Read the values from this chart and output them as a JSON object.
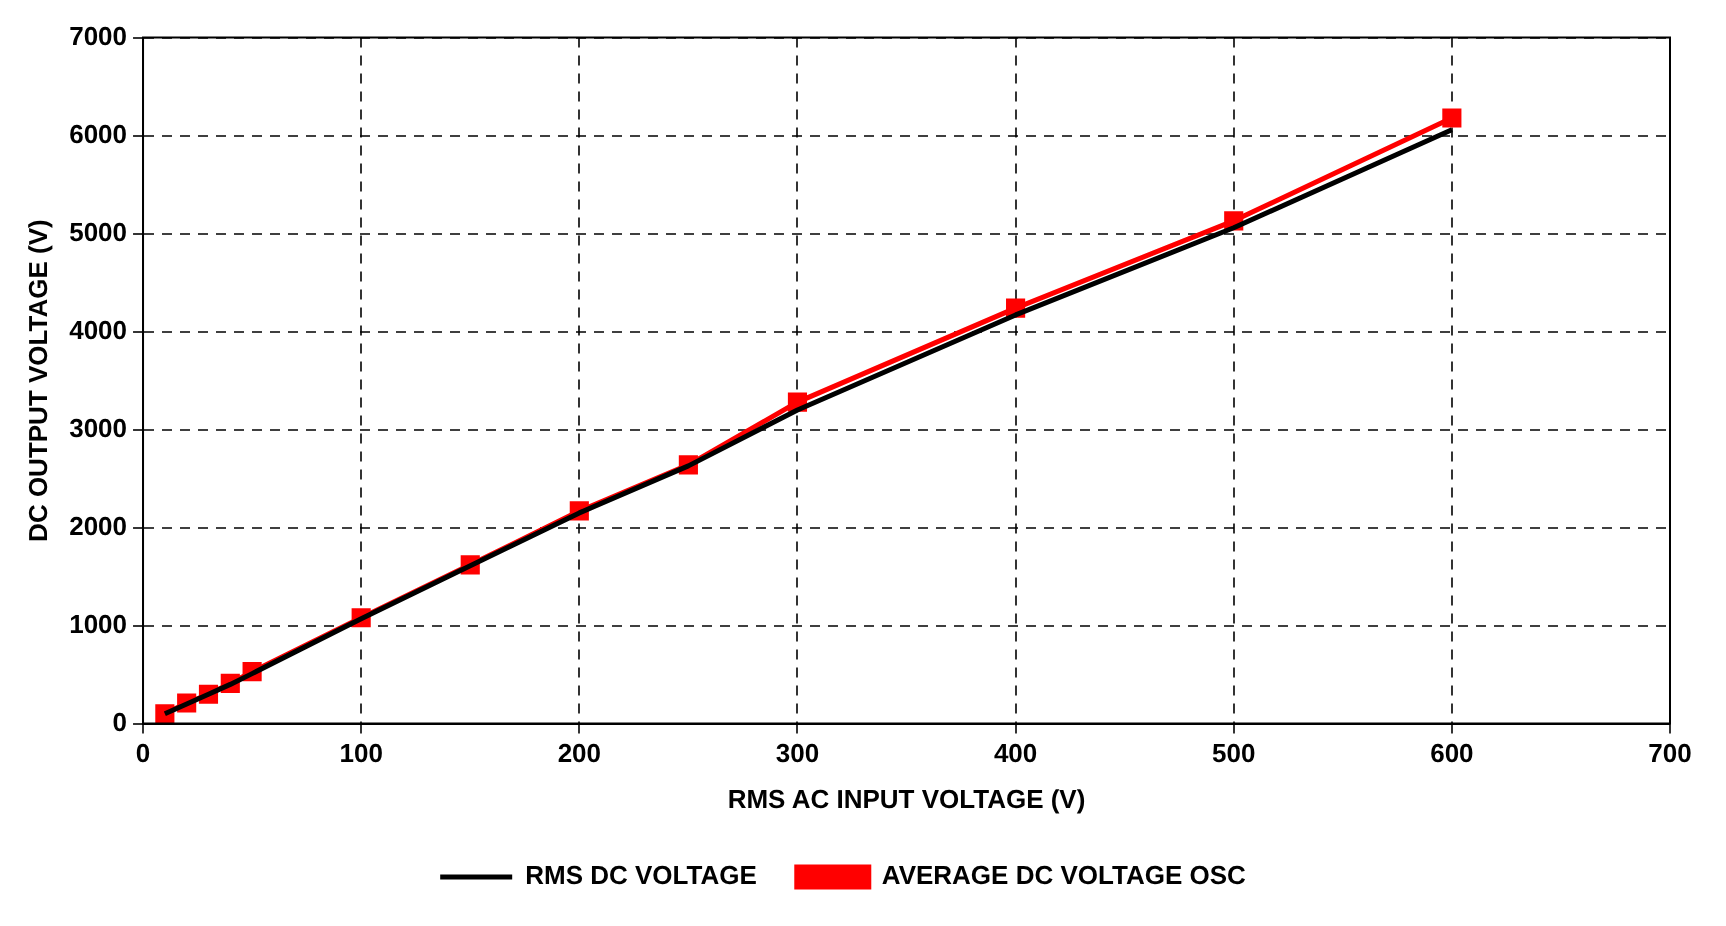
{
  "chart_data": {
    "type": "line",
    "xlabel": "RMS AC INPUT VOLTAGE (V)",
    "ylabel": "DC OUTPUT VOLTAGE (V)",
    "xlim": [
      0,
      700
    ],
    "xticks": [
      0,
      100,
      200,
      300,
      400,
      500,
      600,
      700
    ],
    "ylim": [
      0,
      7000
    ],
    "yticks": [
      0,
      1000,
      2000,
      3000,
      4000,
      5000,
      6000,
      7000
    ],
    "grid": true,
    "legend": "bottom",
    "line_style": "solid",
    "series": [
      {
        "name": "RMS DC VOLTAGE",
        "color": "#000000",
        "marker": "none",
        "x": [
          10,
          20,
          30,
          40,
          50,
          100,
          150,
          200,
          250,
          300,
          400,
          500,
          600
        ],
        "values": [
          100,
          200,
          300,
          400,
          510,
          1070,
          1610,
          2150,
          2630,
          3200,
          4170,
          5060,
          6060
        ]
      },
      {
        "name": "AVERAGE DC VOLTAGE OSC",
        "color": "#ff0000",
        "marker": "square",
        "x": [
          10,
          20,
          30,
          40,
          50,
          100,
          150,
          200,
          250,
          300,
          400,
          500,
          600
        ],
        "values": [
          100,
          210,
          300,
          410,
          530,
          1080,
          1620,
          2170,
          2640,
          3280,
          4240,
          5130,
          6180
        ]
      }
    ]
  }
}
